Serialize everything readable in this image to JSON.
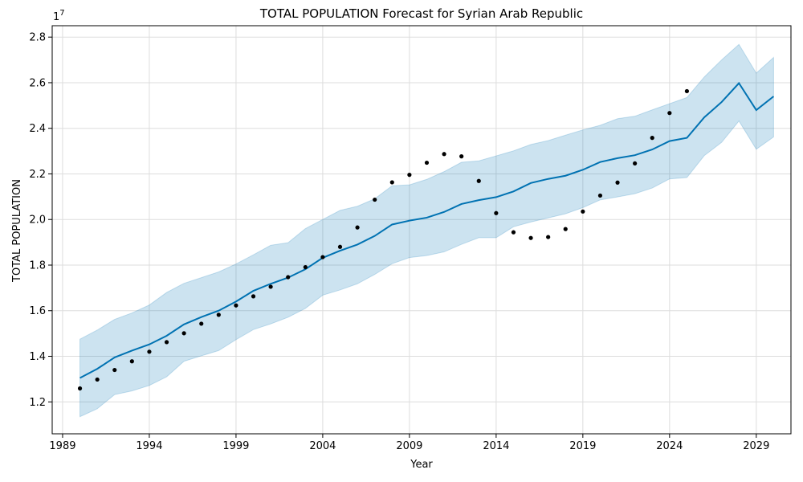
{
  "chart_data": {
    "type": "line",
    "title": "TOTAL POPULATION Forecast for Syrian Arab Republic",
    "xlabel": "Year",
    "ylabel": "TOTAL POPULATION",
    "y_scale_label": "1e7",
    "xlim": [
      1988.4,
      2031.0
    ],
    "ylim": [
      10600000,
      28500000
    ],
    "x_ticks": [
      1989,
      1994,
      1999,
      2004,
      2009,
      2014,
      2019,
      2024,
      2029
    ],
    "x_tick_labels": [
      "1989",
      "1994",
      "1999",
      "2004",
      "2009",
      "2014",
      "2019",
      "2024",
      "2029"
    ],
    "y_ticks": [
      12000000,
      14000000,
      16000000,
      18000000,
      20000000,
      22000000,
      24000000,
      26000000,
      28000000
    ],
    "y_tick_labels": [
      "1.2",
      "1.4",
      "1.6",
      "1.8",
      "2.0",
      "2.2",
      "2.4",
      "2.6",
      "2.8"
    ],
    "grid": true,
    "colors": {
      "forecast": "#0072b2",
      "interval": "#0072b2",
      "observed": "#000000",
      "grid": "#dddddd"
    },
    "series": [
      {
        "role": "observed",
        "x": [
          1990,
          1991,
          1992,
          1993,
          1994,
          1995,
          1996,
          1997,
          1998,
          1999,
          2000,
          2001,
          2002,
          2003,
          2004,
          2005,
          2006,
          2007,
          2008,
          2009,
          2010,
          2011,
          2012,
          2013,
          2014,
          2015,
          2016,
          2017,
          2018,
          2019,
          2020,
          2021,
          2022,
          2023,
          2024,
          2025
        ],
        "y": [
          12590000,
          12980000,
          13400000,
          13780000,
          14200000,
          14620000,
          15010000,
          15430000,
          15820000,
          16230000,
          16630000,
          17050000,
          17470000,
          17910000,
          18350000,
          18800000,
          19650000,
          20870000,
          21630000,
          21960000,
          22490000,
          22870000,
          22770000,
          21690000,
          20280000,
          19440000,
          19190000,
          19230000,
          19580000,
          20350000,
          21050000,
          21620000,
          22460000,
          23580000,
          24670000,
          25630000
        ]
      },
      {
        "role": "forecast",
        "x": [
          1990,
          1991,
          1992,
          1993,
          1994,
          1995,
          1996,
          1997,
          1998,
          1999,
          2000,
          2001,
          2002,
          2003,
          2004,
          2005,
          2006,
          2007,
          2008,
          2009,
          2010,
          2011,
          2012,
          2013,
          2014,
          2015,
          2016,
          2017,
          2018,
          2019,
          2020,
          2021,
          2022,
          2023,
          2024,
          2025,
          2026,
          2027,
          2028,
          2029,
          2030
        ],
        "y": [
          13050000,
          13450000,
          13950000,
          14250000,
          14520000,
          14900000,
          15400000,
          15720000,
          16000000,
          16400000,
          16870000,
          17180000,
          17450000,
          17820000,
          18320000,
          18630000,
          18900000,
          19280000,
          19780000,
          19950000,
          20080000,
          20330000,
          20680000,
          20850000,
          20980000,
          21230000,
          21600000,
          21780000,
          21920000,
          22180000,
          22520000,
          22690000,
          22820000,
          23070000,
          23440000,
          23580000,
          24480000,
          25150000,
          25980000,
          24800000,
          25400000
        ]
      },
      {
        "role": "interval_upper",
        "x": [
          1990,
          1991,
          1992,
          1993,
          1994,
          1995,
          1996,
          1997,
          1998,
          1999,
          2000,
          2001,
          2002,
          2003,
          2004,
          2005,
          2006,
          2007,
          2008,
          2009,
          2010,
          2011,
          2012,
          2013,
          2014,
          2015,
          2016,
          2017,
          2018,
          2019,
          2020,
          2021,
          2022,
          2023,
          2024,
          2025,
          2026,
          2027,
          2028,
          2029,
          2030
        ],
        "y": [
          14750000,
          15150000,
          15620000,
          15900000,
          16250000,
          16800000,
          17200000,
          17450000,
          17700000,
          18050000,
          18450000,
          18870000,
          18980000,
          19600000,
          20000000,
          20400000,
          20580000,
          20910000,
          21480000,
          21520000,
          21760000,
          22100000,
          22510000,
          22570000,
          22790000,
          23010000,
          23290000,
          23460000,
          23700000,
          23930000,
          24130000,
          24420000,
          24530000,
          24810000,
          25080000,
          25350000,
          26250000,
          27000000,
          27680000,
          26420000,
          27110000
        ]
      },
      {
        "role": "interval_lower",
        "x": [
          1990,
          1991,
          1992,
          1993,
          1994,
          1995,
          1996,
          1997,
          1998,
          1999,
          2000,
          2001,
          2002,
          2003,
          2004,
          2005,
          2006,
          2007,
          2008,
          2009,
          2010,
          2011,
          2012,
          2013,
          2014,
          2015,
          2016,
          2017,
          2018,
          2019,
          2020,
          2021,
          2022,
          2023,
          2024,
          2025,
          2026,
          2027,
          2028,
          2029,
          2030
        ],
        "y": [
          11350000,
          11700000,
          12320000,
          12480000,
          12720000,
          13100000,
          13780000,
          14020000,
          14250000,
          14730000,
          15170000,
          15420000,
          15710000,
          16100000,
          16680000,
          16910000,
          17180000,
          17590000,
          18060000,
          18330000,
          18420000,
          18580000,
          18910000,
          19200000,
          19200000,
          19680000,
          19890000,
          20070000,
          20250000,
          20520000,
          20860000,
          20990000,
          21130000,
          21380000,
          21780000,
          21840000,
          22800000,
          23380000,
          24320000,
          23080000,
          23620000
        ]
      }
    ]
  }
}
